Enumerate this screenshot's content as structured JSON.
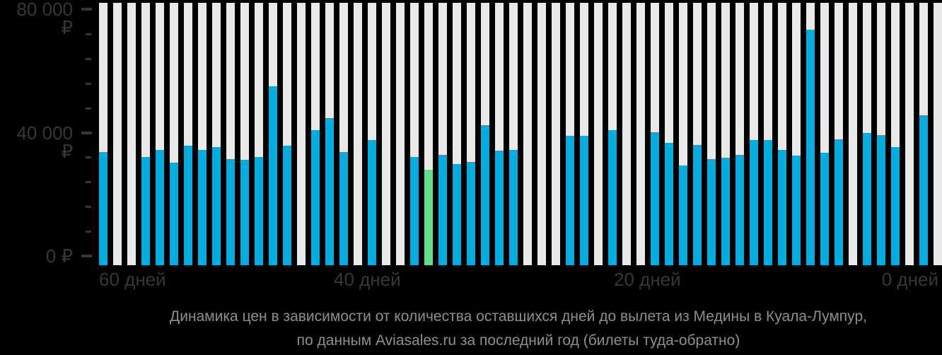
{
  "chart_data": {
    "type": "bar",
    "title": "Динамика цен в зависимости от количества оставшихся дней до вылета из Медины в Куала-Лумпур,",
    "subtitle": "по данным Aviasales.ru за последний год (билеты туда-обратно)",
    "x_unit": "days_left_before_departure",
    "currency": "RUB",
    "ylim": [
      0,
      80000
    ],
    "grid": false,
    "yticks": [
      "80 000 ₽",
      "40 000 ₽",
      "0 ₽"
    ],
    "ytick_values": [
      80000,
      40000,
      0
    ],
    "ytick_minor_step": 8000,
    "xticks": [
      "60 дней",
      "40 дней",
      "20 дней",
      "0 дней"
    ],
    "xtick_values": [
      60,
      40,
      20,
      0
    ],
    "colors": {
      "bar": "#03ABDE",
      "min_price_bar": "#64DE8C",
      "no_data_column": "#E8E8E8",
      "background": "#000000",
      "axis_text": "#37373B",
      "title_text": "#8E8E8E"
    },
    "min_price": {
      "days_left": 36,
      "price": 27900
    },
    "bars": [
      {
        "d": 59,
        "p": 33800
      },
      {
        "d": 58,
        "p": null
      },
      {
        "d": 57,
        "p": null
      },
      {
        "d": 56,
        "p": 32200
      },
      {
        "d": 55,
        "p": 34300
      },
      {
        "d": 54,
        "p": 30200
      },
      {
        "d": 53,
        "p": 35700
      },
      {
        "d": 52,
        "p": 34300
      },
      {
        "d": 51,
        "p": 35400
      },
      {
        "d": 50,
        "p": 31300
      },
      {
        "d": 49,
        "p": 31100
      },
      {
        "d": 48,
        "p": 32200
      },
      {
        "d": 47,
        "p": 54900
      },
      {
        "d": 46,
        "p": 35700
      },
      {
        "d": 45,
        "p": null
      },
      {
        "d": 44,
        "p": 40700
      },
      {
        "d": 43,
        "p": 44800
      },
      {
        "d": 42,
        "p": 33800
      },
      {
        "d": 41,
        "p": null
      },
      {
        "d": 40,
        "p": 37700
      },
      {
        "d": 39,
        "p": null
      },
      {
        "d": 38,
        "p": null
      },
      {
        "d": 37,
        "p": 32200
      },
      {
        "d": 36,
        "p": 27900,
        "min": true
      },
      {
        "d": 35,
        "p": 32700
      },
      {
        "d": 34,
        "p": 29700
      },
      {
        "d": 33,
        "p": 30600
      },
      {
        "d": 32,
        "p": 42300
      },
      {
        "d": 31,
        "p": 34100
      },
      {
        "d": 30,
        "p": 34300
      },
      {
        "d": 29,
        "p": null
      },
      {
        "d": 28,
        "p": null
      },
      {
        "d": 27,
        "p": null
      },
      {
        "d": 26,
        "p": 38900
      },
      {
        "d": 25,
        "p": 38900
      },
      {
        "d": 24,
        "p": null
      },
      {
        "d": 23,
        "p": 40700
      },
      {
        "d": 22,
        "p": null
      },
      {
        "d": 21,
        "p": null
      },
      {
        "d": 20,
        "p": 40200
      },
      {
        "d": 19,
        "p": 36600
      },
      {
        "d": 18,
        "p": 29300
      },
      {
        "d": 17,
        "p": 35900
      },
      {
        "d": 16,
        "p": 31300
      },
      {
        "d": 15,
        "p": 31800
      },
      {
        "d": 14,
        "p": 32700
      },
      {
        "d": 13,
        "p": 37700
      },
      {
        "d": 12,
        "p": 37500
      },
      {
        "d": 11,
        "p": 34300
      },
      {
        "d": 10,
        "p": 32500
      },
      {
        "d": 9,
        "p": 73400
      },
      {
        "d": 8,
        "p": 33400
      },
      {
        "d": 7,
        "p": 37900
      },
      {
        "d": 6,
        "p": null
      },
      {
        "d": 5,
        "p": 39800
      },
      {
        "d": 4,
        "p": 39100
      },
      {
        "d": 3,
        "p": 35300
      },
      {
        "d": 2,
        "p": null
      },
      {
        "d": 1,
        "p": 45700
      },
      {
        "d": 0,
        "p": null
      }
    ]
  }
}
